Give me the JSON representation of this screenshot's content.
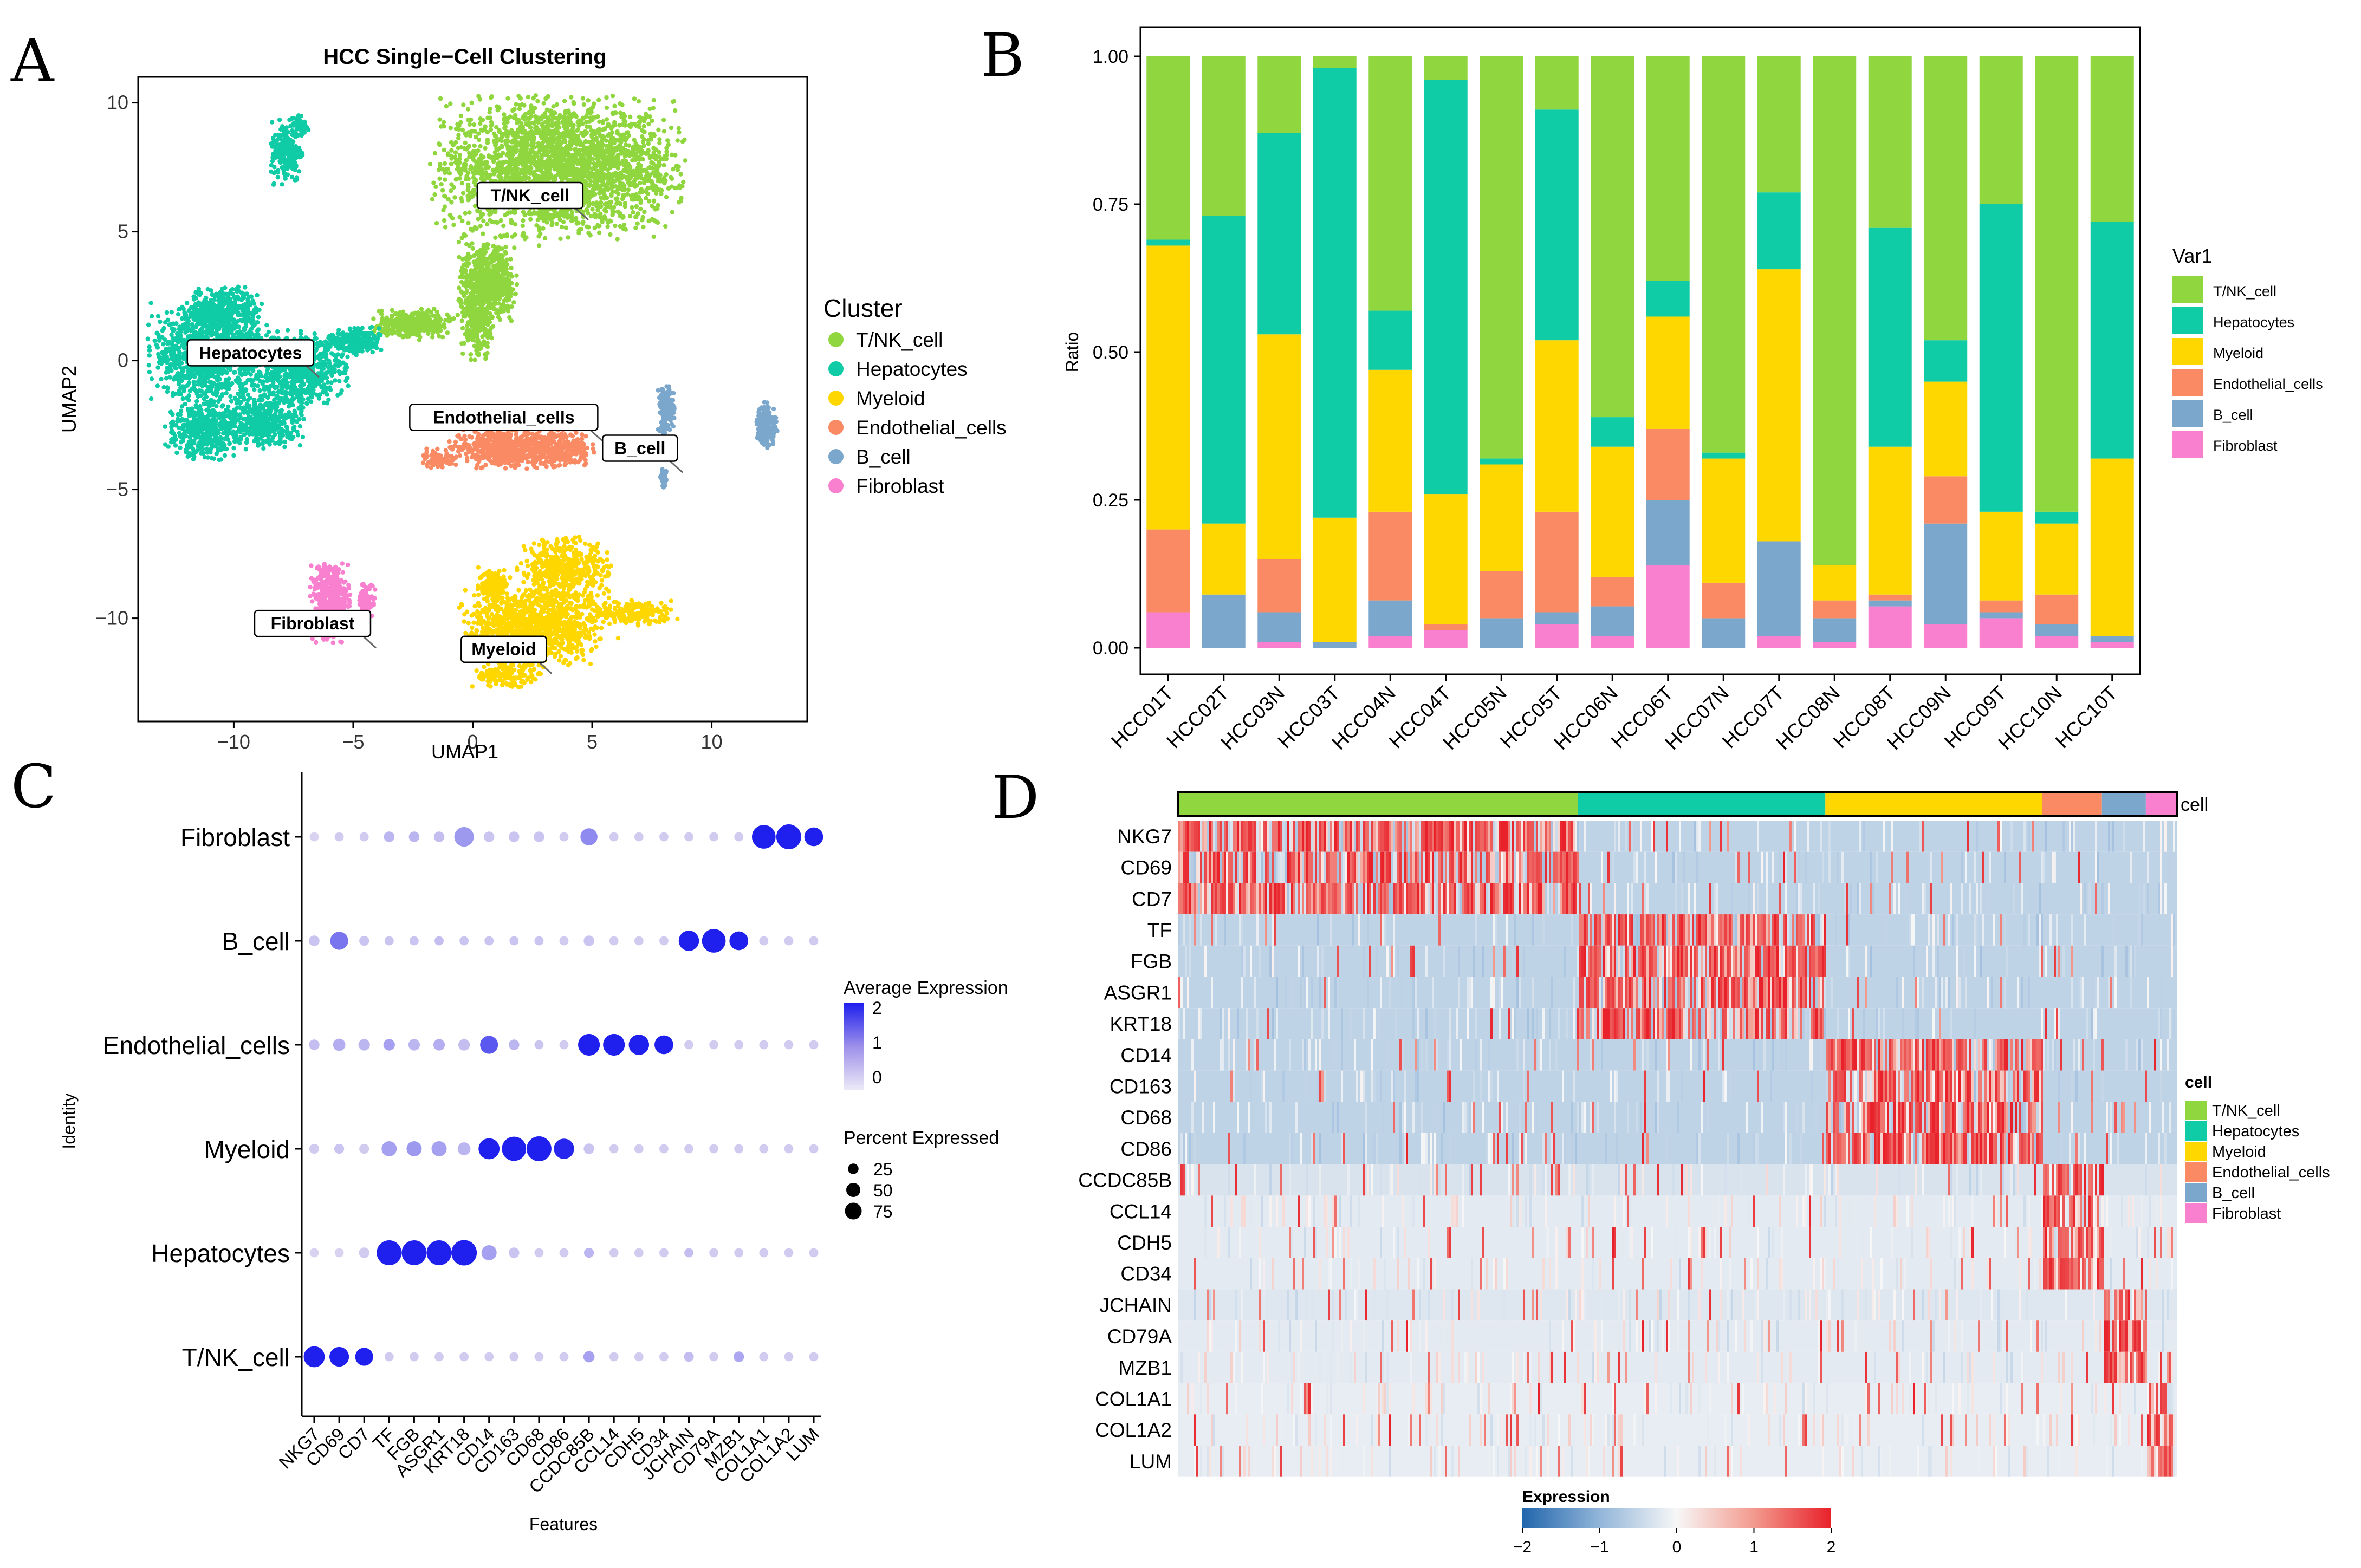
{
  "colors": {
    "T/NK_cell": "#8FD63F",
    "Hepatocytes": "#0FCBA6",
    "Myeloid": "#FFD700",
    "Endothelial_cells": "#F98A63",
    "B_cell": "#7BA7CC",
    "Fibroblast": "#F97FCF",
    "expr_low": "#2166AC",
    "expr_mid": "#F7F7F7",
    "expr_high": "#E8212A",
    "dot_low": "#D9D2F0",
    "dot_high": "#1F1FEE"
  },
  "panels": {
    "A": "A",
    "B": "B",
    "C": "C",
    "D": "D"
  },
  "chart_data": [
    {
      "panel": "A",
      "type": "scatter",
      "title": "HCC Single−Cell Clustering",
      "xlabel": "UMAP1",
      "ylabel": "UMAP2",
      "xlim": [
        -14,
        14
      ],
      "ylim": [
        -14,
        11
      ],
      "xticks": [
        -10,
        -5,
        0,
        5,
        10
      ],
      "yticks": [
        10,
        5,
        0,
        -5,
        -10
      ],
      "xtick_labels": [
        "−10",
        "−5",
        "0",
        "5",
        "10"
      ],
      "ytick_labels": [
        "10",
        "5",
        "0",
        "−5",
        "−10"
      ],
      "legend_title": "Cluster",
      "legend": [
        "T/NK_cell",
        "Hepatocytes",
        "Myeloid",
        "Endothelial_cells",
        "B_cell",
        "Fibroblast"
      ],
      "cluster_labels": [
        {
          "text": "T/NK_cell",
          "x": 2.4,
          "y": 6.4
        },
        {
          "text": "Hepatocytes",
          "x": -9.3,
          "y": 0.3
        },
        {
          "text": "Endothelial_cells",
          "x": 1.3,
          "y": -2.2
        },
        {
          "text": "B_cell",
          "x": 7.0,
          "y": -3.4
        },
        {
          "text": "Fibroblast",
          "x": -6.7,
          "y": -10.2
        },
        {
          "text": "Myeloid",
          "x": 1.3,
          "y": -11.2
        }
      ],
      "clusters": [
        {
          "name": "T/NK_cell",
          "blobs": [
            [
              3.6,
              7.5,
              5.3,
              2.8,
              2500
            ],
            [
              0.6,
              3.0,
              1.3,
              1.6,
              600
            ],
            [
              -2.5,
              1.4,
              1.8,
              0.6,
              350
            ],
            [
              0.2,
              1.3,
              0.7,
              1.3,
              200
            ]
          ]
        },
        {
          "name": "Hepatocytes",
          "blobs": [
            [
              -11.0,
              0.3,
              2.6,
              2.0,
              1100
            ],
            [
              -7.3,
              -0.3,
              2.1,
              1.5,
              700
            ],
            [
              -8.8,
              -2.4,
              1.8,
              1.1,
              400
            ],
            [
              -11.3,
              -2.7,
              1.6,
              1.2,
              400
            ],
            [
              -10.4,
              2.0,
              1.6,
              0.9,
              350
            ],
            [
              -5.0,
              0.7,
              1.2,
              0.6,
              220
            ],
            [
              -7.8,
              8.1,
              0.7,
              1.3,
              200
            ],
            [
              -7.2,
              9.1,
              0.4,
              0.5,
              50
            ]
          ]
        },
        {
          "name": "Endothelial_cells",
          "blobs": [
            [
              1.2,
              -3.4,
              2.3,
              0.8,
              500
            ],
            [
              3.6,
              -3.4,
              1.5,
              0.8,
              300
            ],
            [
              -1.4,
              -3.8,
              0.8,
              0.4,
              60
            ]
          ]
        },
        {
          "name": "Myeloid",
          "blobs": [
            [
              2.5,
              -10.4,
              3.1,
              1.5,
              1100
            ],
            [
              3.8,
              -8.2,
              2.0,
              1.4,
              500
            ],
            [
              0.9,
              -8.7,
              0.7,
              0.7,
              150
            ],
            [
              6.8,
              -9.8,
              1.8,
              0.5,
              200
            ],
            [
              1.4,
              -12.2,
              1.5,
              0.5,
              150
            ]
          ]
        },
        {
          "name": "B_cell",
          "blobs": [
            [
              8.1,
              -1.9,
              0.35,
              1.0,
              180
            ],
            [
              12.3,
              -2.5,
              0.45,
              0.9,
              180
            ],
            [
              8.0,
              -4.6,
              0.15,
              0.4,
              30
            ]
          ]
        },
        {
          "name": "Fibroblast",
          "blobs": [
            [
              -6.0,
              -9.3,
              0.9,
              1.8,
              400
            ],
            [
              -4.4,
              -9.3,
              0.35,
              0.7,
              80
            ]
          ]
        }
      ]
    },
    {
      "panel": "B",
      "type": "bar",
      "stacked": true,
      "xlabel": "",
      "ylabel": "Ratio",
      "ylim": [
        0,
        1
      ],
      "yticks": [
        "0.00",
        "0.25",
        "0.50",
        "0.75",
        "1.00"
      ],
      "legend_title": "Var1",
      "categories": [
        "HCC01T",
        "HCC02T",
        "HCC03N",
        "HCC03T",
        "HCC04N",
        "HCC04T",
        "HCC05N",
        "HCC05T",
        "HCC06N",
        "HCC06T",
        "HCC07N",
        "HCC07T",
        "HCC08N",
        "HCC08T",
        "HCC09N",
        "HCC09T",
        "HCC10N",
        "HCC10T"
      ],
      "series": [
        {
          "name": "Fibroblast",
          "values": [
            0.06,
            0.0,
            0.01,
            0.0,
            0.02,
            0.03,
            0.0,
            0.04,
            0.02,
            0.14,
            0.0,
            0.02,
            0.01,
            0.07,
            0.04,
            0.05,
            0.02,
            0.01
          ]
        },
        {
          "name": "B_cell",
          "values": [
            0.0,
            0.09,
            0.05,
            0.01,
            0.06,
            0.0,
            0.05,
            0.02,
            0.05,
            0.11,
            0.05,
            0.16,
            0.04,
            0.01,
            0.17,
            0.01,
            0.02,
            0.01
          ]
        },
        {
          "name": "Endothelial_cells",
          "values": [
            0.14,
            0.0,
            0.09,
            0.0,
            0.15,
            0.01,
            0.08,
            0.17,
            0.05,
            0.12,
            0.06,
            0.0,
            0.03,
            0.01,
            0.08,
            0.02,
            0.05,
            0.0
          ]
        },
        {
          "name": "Myeloid",
          "values": [
            0.48,
            0.12,
            0.38,
            0.21,
            0.24,
            0.22,
            0.18,
            0.29,
            0.22,
            0.19,
            0.21,
            0.46,
            0.06,
            0.25,
            0.16,
            0.15,
            0.12,
            0.3
          ]
        },
        {
          "name": "Hepatocytes",
          "values": [
            0.01,
            0.52,
            0.34,
            0.76,
            0.1,
            0.7,
            0.01,
            0.39,
            0.05,
            0.06,
            0.01,
            0.13,
            0.0,
            0.37,
            0.07,
            0.52,
            0.02,
            0.4
          ]
        },
        {
          "name": "T/NK_cell",
          "values": [
            0.31,
            0.27,
            0.13,
            0.02,
            0.43,
            0.04,
            0.68,
            0.09,
            0.61,
            0.38,
            0.67,
            0.23,
            0.86,
            0.29,
            0.48,
            0.25,
            0.77,
            0.28
          ]
        }
      ],
      "legend": [
        "T/NK_cell",
        "Hepatocytes",
        "Myeloid",
        "Endothelial_cells",
        "B_cell",
        "Fibroblast"
      ]
    },
    {
      "panel": "C",
      "type": "dot",
      "xlabel": "Features",
      "ylabel": "Identity",
      "features": [
        "NKG7",
        "CD69",
        "CD7",
        "TF",
        "FGB",
        "ASGR1",
        "KRT18",
        "CD14",
        "CD163",
        "CD68",
        "CD86",
        "CCDC85B",
        "CCL14",
        "CDH5",
        "CD34",
        "JCHAIN",
        "CD79A",
        "MZB1",
        "COL1A1",
        "COL1A2",
        "LUM"
      ],
      "identities": [
        "Fibroblast",
        "B_cell",
        "Endothelial_cells",
        "Myeloid",
        "Hepatocytes",
        "T/NK_cell"
      ],
      "avg_expression": [
        [
          -0.5,
          -0.4,
          -0.4,
          -0.1,
          -0.1,
          -0.2,
          0.3,
          -0.3,
          -0.3,
          -0.3,
          -0.4,
          0.5,
          -0.4,
          -0.4,
          -0.4,
          -0.4,
          -0.4,
          -0.4,
          2.0,
          2.0,
          2.0
        ],
        [
          -0.3,
          0.8,
          -0.3,
          -0.3,
          -0.3,
          -0.2,
          -0.3,
          -0.3,
          -0.3,
          -0.3,
          -0.4,
          -0.3,
          -0.4,
          -0.4,
          -0.4,
          2.0,
          2.0,
          2.0,
          -0.4,
          -0.4,
          -0.4
        ],
        [
          -0.2,
          0.0,
          -0.1,
          0.2,
          -0.1,
          0.0,
          -0.2,
          1.2,
          -0.1,
          -0.3,
          -0.4,
          2.0,
          2.0,
          2.0,
          2.0,
          -0.4,
          -0.4,
          -0.4,
          -0.4,
          -0.4,
          -0.4
        ],
        [
          -0.4,
          -0.3,
          -0.4,
          0.2,
          0.3,
          0.2,
          -0.1,
          2.0,
          2.0,
          2.0,
          1.9,
          -0.3,
          -0.4,
          -0.4,
          -0.4,
          -0.4,
          -0.4,
          -0.4,
          -0.4,
          -0.4,
          -0.4
        ],
        [
          -0.5,
          -0.5,
          -0.4,
          2.0,
          2.0,
          2.0,
          2.0,
          0.2,
          -0.3,
          -0.4,
          -0.4,
          -0.1,
          -0.4,
          -0.4,
          -0.4,
          -0.2,
          -0.4,
          -0.4,
          -0.4,
          -0.4,
          -0.4
        ],
        [
          2.0,
          2.0,
          2.0,
          -0.4,
          -0.4,
          -0.4,
          -0.4,
          -0.4,
          -0.4,
          -0.4,
          -0.4,
          0.2,
          -0.4,
          -0.4,
          -0.4,
          -0.2,
          -0.4,
          0.1,
          -0.4,
          -0.4,
          -0.4
        ]
      ],
      "pct_expressed": [
        [
          8,
          8,
          8,
          12,
          12,
          12,
          55,
          12,
          12,
          12,
          8,
          40,
          8,
          8,
          8,
          8,
          8,
          8,
          85,
          95,
          50
        ],
        [
          12,
          45,
          10,
          8,
          8,
          8,
          8,
          8,
          8,
          8,
          8,
          12,
          8,
          8,
          8,
          60,
          85,
          50,
          8,
          8,
          8
        ],
        [
          12,
          18,
          15,
          15,
          15,
          15,
          15,
          45,
          12,
          8,
          8,
          70,
          70,
          60,
          50,
          8,
          8,
          8,
          8,
          8,
          8
        ],
        [
          10,
          10,
          10,
          30,
          30,
          30,
          20,
          65,
          90,
          95,
          60,
          12,
          8,
          8,
          8,
          8,
          8,
          8,
          8,
          8,
          8
        ],
        [
          8,
          8,
          12,
          95,
          95,
          95,
          100,
          30,
          12,
          8,
          8,
          10,
          8,
          8,
          8,
          8,
          8,
          8,
          8,
          8,
          8
        ],
        [
          65,
          55,
          45,
          8,
          8,
          8,
          8,
          8,
          8,
          8,
          8,
          14,
          8,
          8,
          8,
          10,
          8,
          12,
          8,
          8,
          8
        ]
      ],
      "color_legend_title": "Average Expression",
      "color_ticks": [
        "2",
        "1",
        "0"
      ],
      "size_legend_title": "Percent Expressed",
      "size_ticks": [
        "25",
        "50",
        "75"
      ]
    },
    {
      "panel": "D",
      "type": "heatmap",
      "genes": [
        "NKG7",
        "CD69",
        "CD7",
        "TF",
        "FGB",
        "ASGR1",
        "KRT18",
        "CD14",
        "CD163",
        "CD68",
        "CD86",
        "CCDC85B",
        "CCL14",
        "CDH5",
        "CD34",
        "JCHAIN",
        "CD79A",
        "MZB1",
        "COL1A1",
        "COL1A2",
        "LUM"
      ],
      "gene_groups": [
        0,
        0,
        0,
        1,
        1,
        1,
        1,
        2,
        2,
        2,
        2,
        3,
        3,
        3,
        3,
        4,
        4,
        4,
        5,
        5,
        5
      ],
      "cell_groups": [
        {
          "name": "T/NK_cell",
          "fraction": 0.4
        },
        {
          "name": "Hepatocytes",
          "fraction": 0.248
        },
        {
          "name": "Myeloid",
          "fraction": 0.217
        },
        {
          "name": "Endothelial_cells",
          "fraction": 0.06
        },
        {
          "name": "B_cell",
          "fraction": 0.044
        },
        {
          "name": "Fibroblast",
          "fraction": 0.031
        }
      ],
      "annotation_label": "cell",
      "legend_title": "cell",
      "legend": [
        "T/NK_cell",
        "Hepatocytes",
        "Myeloid",
        "Endothelial_cells",
        "B_cell",
        "Fibroblast"
      ],
      "color_title": "Expression",
      "color_range": [
        -2,
        2
      ],
      "color_ticks": [
        "−2",
        "−1",
        "0",
        "1",
        "2"
      ]
    }
  ]
}
